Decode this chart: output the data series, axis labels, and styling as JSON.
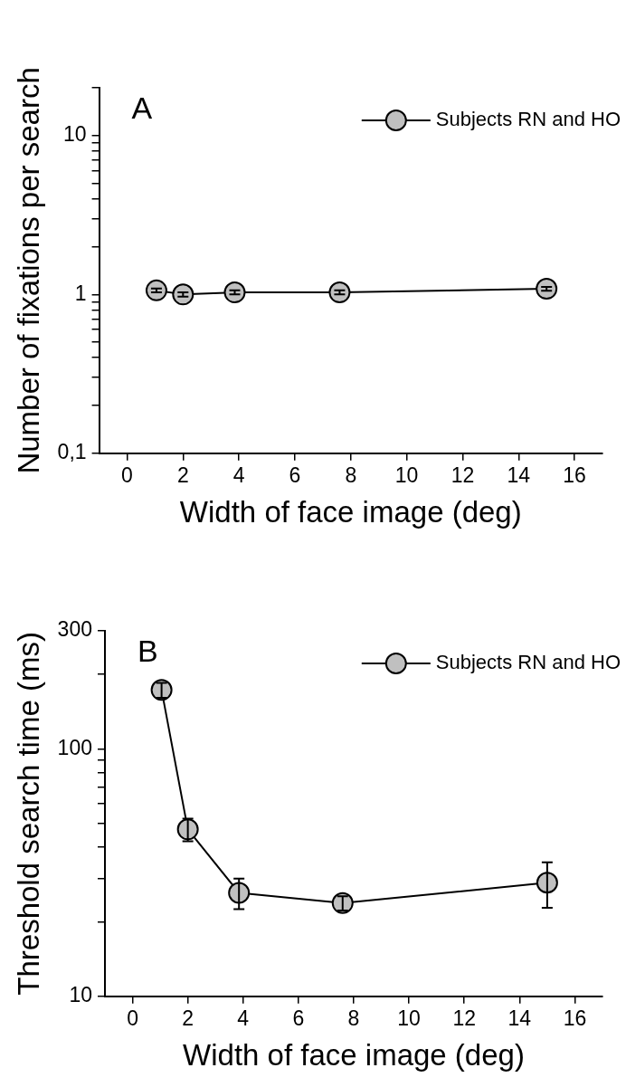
{
  "chart_data": [
    {
      "type": "line",
      "annotations": [
        "A"
      ],
      "xlabel": "Width of face image (deg)",
      "ylabel": "Number of fixations per search",
      "x": [
        1.05,
        2.0,
        3.85,
        7.6,
        15.0
      ],
      "series": [
        {
          "name": "Subjects RN and HO",
          "color": "#c0c0c0",
          "values": [
            1.06,
            1.0,
            1.03,
            1.03,
            1.085
          ],
          "errors": [
            0.03,
            0.03,
            0.03,
            0.03,
            0.03
          ]
        }
      ],
      "log": "y",
      "xlim": [
        -1,
        17
      ],
      "xticks": [
        0,
        2,
        4,
        6,
        8,
        10,
        12,
        14,
        16
      ],
      "ylim": [
        0.1,
        20
      ],
      "yticks": [
        {
          "value": 0.1,
          "label": "0,1"
        },
        {
          "value": 0.2,
          "label": null
        },
        {
          "value": 0.3,
          "label": null
        },
        {
          "value": 0.4,
          "label": null
        },
        {
          "value": 0.5,
          "label": null
        },
        {
          "value": 0.6,
          "label": null
        },
        {
          "value": 0.7,
          "label": null
        },
        {
          "value": 0.8,
          "label": null
        },
        {
          "value": 0.9,
          "label": null
        },
        1,
        {
          "value": 2,
          "label": null
        },
        {
          "value": 3,
          "label": null
        },
        {
          "value": 4,
          "label": null
        },
        {
          "value": 5,
          "label": null
        },
        {
          "value": 6,
          "label": null
        },
        {
          "value": 7,
          "label": null
        },
        {
          "value": 8,
          "label": null
        },
        {
          "value": 9,
          "label": null
        },
        10,
        {
          "value": 20,
          "label": null
        }
      ],
      "grid": false,
      "legend": "top right",
      "marker": "circle",
      "line_style": "solid"
    },
    {
      "type": "line",
      "annotations": [
        "B"
      ],
      "xlabel": "Width of face image (deg)",
      "ylabel": "Threshold search time (ms)",
      "x": [
        1.05,
        2.0,
        3.85,
        7.6,
        15.0
      ],
      "series": [
        {
          "name": "Subjects RN and HO",
          "color": "#c0c0c0",
          "values": [
            173,
            47.3,
            26.2,
            23.8,
            28.8
          ],
          "errors": [
            12,
            5,
            3.7,
            1.6,
            6
          ]
        }
      ],
      "log": "y",
      "xlim": [
        -1,
        17
      ],
      "xticks": [
        0,
        2,
        4,
        6,
        8,
        10,
        12,
        14,
        16
      ],
      "ylim": [
        10,
        300
      ],
      "yticks": [
        10,
        {
          "value": 20,
          "label": null
        },
        {
          "value": 30,
          "label": null
        },
        {
          "value": 40,
          "label": null
        },
        {
          "value": 50,
          "label": null
        },
        {
          "value": 60,
          "label": null
        },
        {
          "value": 70,
          "label": null
        },
        {
          "value": 80,
          "label": null
        },
        {
          "value": 90,
          "label": null
        },
        100,
        {
          "value": 200,
          "label": null
        },
        300
      ],
      "grid": false,
      "legend": "top right",
      "marker": "circle",
      "line_style": "solid"
    }
  ]
}
